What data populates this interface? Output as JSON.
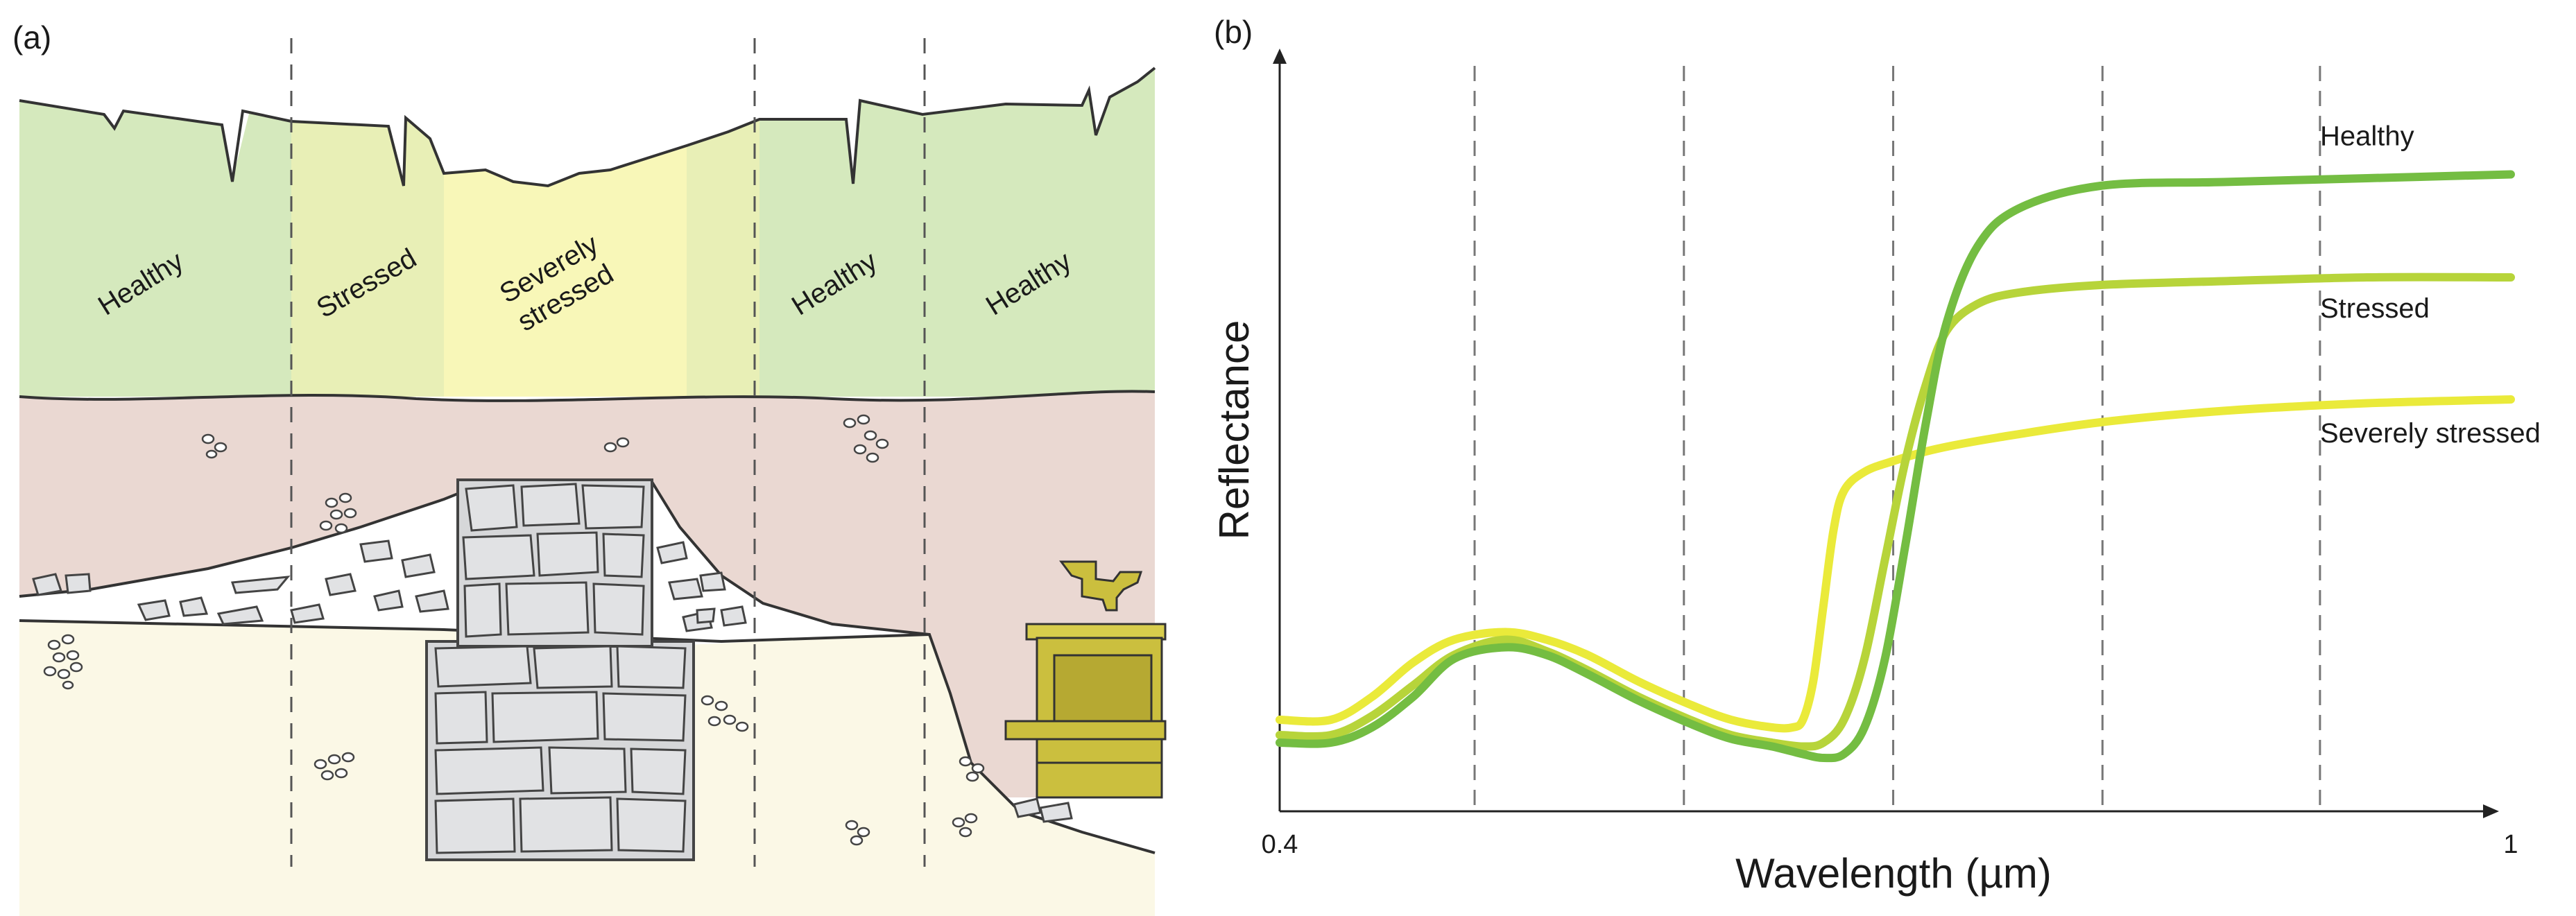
{
  "panel_a": {
    "letter": "(a)",
    "zones": [
      {
        "label_lines": [
          "Healthy"
        ],
        "color": "#d5e9bd"
      },
      {
        "label_lines": [
          "Stressed"
        ],
        "color": "#e8efb6"
      },
      {
        "label_lines": [
          "Severely",
          "stressed"
        ],
        "color": "#f8f7b8"
      },
      {
        "label_lines": [
          "Healthy"
        ],
        "color": "#d5e9bd"
      },
      {
        "label_lines": [
          "Healthy"
        ],
        "color": "#d5e9bd"
      }
    ],
    "colors": {
      "soil": "#ead8d2",
      "subsoil": "#fbf8e6",
      "wall_stone": "#e1e2e4",
      "outline": "#333333",
      "artifact": "#cbbf3e"
    },
    "icons": [
      "wall-stones-icon",
      "rubble-pebbles-icon",
      "golden-chest-artifact-icon"
    ]
  },
  "panel_b": {
    "letter": "(b)"
  },
  "chart_data": {
    "type": "line",
    "title": "",
    "xlabel": "Wavelength (µm)",
    "ylabel": "Reflectance",
    "xlim": [
      0.4,
      1.0
    ],
    "ylim": [
      0,
      1
    ],
    "x_tick_labels": [
      "0.4",
      "1"
    ],
    "gridlines_x": [
      0.495,
      0.597,
      0.699,
      0.801,
      0.907
    ],
    "grid": "vertical dashed",
    "legend": "labels at right end of each curve",
    "series": [
      {
        "name": "Healthy",
        "color": "#74bd42",
        "x": [
          0.4,
          0.425,
          0.445,
          0.465,
          0.485,
          0.51,
          0.53,
          0.55,
          0.575,
          0.6,
          0.62,
          0.64,
          0.655,
          0.665,
          0.675,
          0.685,
          0.695,
          0.705,
          0.715,
          0.725,
          0.74,
          0.76,
          0.8,
          0.86,
          0.93,
          1.0
        ],
        "y": [
          0.09,
          0.09,
          0.11,
          0.15,
          0.2,
          0.215,
          0.205,
          0.18,
          0.145,
          0.115,
          0.095,
          0.085,
          0.075,
          0.07,
          0.075,
          0.11,
          0.2,
          0.35,
          0.51,
          0.64,
          0.74,
          0.79,
          0.82,
          0.825,
          0.83,
          0.835
        ]
      },
      {
        "name": "Stressed",
        "color": "#b7d43a",
        "x": [
          0.4,
          0.425,
          0.445,
          0.465,
          0.485,
          0.51,
          0.53,
          0.55,
          0.575,
          0.6,
          0.62,
          0.64,
          0.655,
          0.665,
          0.675,
          0.685,
          0.695,
          0.705,
          0.715,
          0.725,
          0.74,
          0.76,
          0.8,
          0.86,
          0.93,
          1.0
        ],
        "y": [
          0.1,
          0.1,
          0.125,
          0.165,
          0.205,
          0.225,
          0.21,
          0.185,
          0.15,
          0.12,
          0.1,
          0.09,
          0.085,
          0.09,
          0.12,
          0.2,
          0.33,
          0.46,
          0.56,
          0.63,
          0.665,
          0.68,
          0.69,
          0.695,
          0.7,
          0.7
        ]
      },
      {
        "name": "Severely stressed",
        "color": "#eaea3a",
        "x": [
          0.4,
          0.425,
          0.445,
          0.465,
          0.485,
          0.51,
          0.53,
          0.55,
          0.575,
          0.6,
          0.62,
          0.64,
          0.65,
          0.655,
          0.66,
          0.665,
          0.67,
          0.675,
          0.685,
          0.7,
          0.72,
          0.75,
          0.8,
          0.86,
          0.93,
          1.0
        ],
        "y": [
          0.12,
          0.12,
          0.15,
          0.195,
          0.225,
          0.235,
          0.225,
          0.205,
          0.17,
          0.14,
          0.12,
          0.11,
          0.11,
          0.12,
          0.17,
          0.27,
          0.37,
          0.42,
          0.445,
          0.46,
          0.475,
          0.49,
          0.51,
          0.525,
          0.535,
          0.54
        ]
      }
    ]
  }
}
